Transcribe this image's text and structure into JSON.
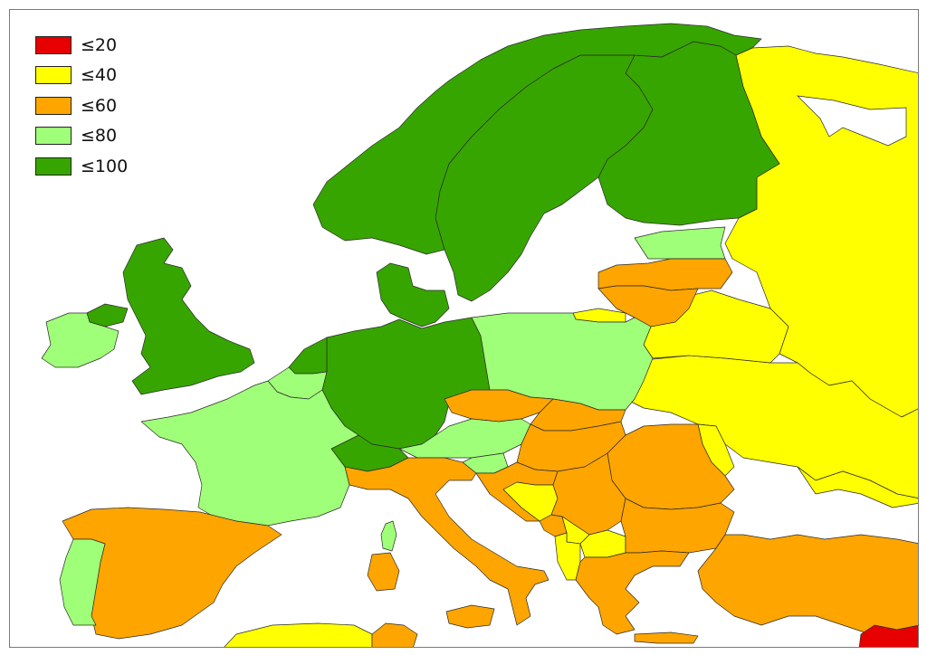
{
  "colors": {
    "le20": "#e60000",
    "le40": "#ffff00",
    "le60": "#ffa500",
    "le80": "#a0ff78",
    "le100": "#37a500",
    "nodata": "#ffffff"
  },
  "legend": {
    "items": [
      {
        "label": "≤20",
        "color": "#e60000"
      },
      {
        "label": "≤40",
        "color": "#ffff00"
      },
      {
        "label": "≤60",
        "color": "#ffa500"
      },
      {
        "label": "≤80",
        "color": "#a0ff78"
      },
      {
        "label": "≤100",
        "color": "#37a500"
      }
    ]
  },
  "regions": {
    "norway": "le100",
    "sweden": "le100",
    "finland": "le100",
    "denmark": "le100",
    "uk": "le100",
    "northern_ireland": "le100",
    "germany": "le100",
    "netherlands": "le100",
    "switzerland": "le100",
    "ireland": "le80",
    "france": "le80",
    "belgium": "le80",
    "poland": "le80",
    "austria": "le80",
    "portugal": "le80",
    "estonia": "le80",
    "slovenia": "le80",
    "corsica": "le80",
    "spain": "le60",
    "italy": "le60",
    "czechia": "le60",
    "latvia": "le60",
    "lithuania": "le60",
    "hungary": "le60",
    "slovakia": "le60",
    "croatia": "le60",
    "serbia": "le60",
    "romania": "le60",
    "bulgaria": "le60",
    "greece": "le60",
    "turkey": "le60",
    "montenegro": "le60",
    "north_africa_right": "le60",
    "russia": "le40",
    "belarus": "le40",
    "ukraine": "le40",
    "moldova": "le40",
    "kaliningrad": "le40",
    "bosnia": "le40",
    "kosovo": "le40",
    "north_macedonia": "le40",
    "albania": "le40",
    "north_africa_left": "le40",
    "syria_corner": "le20"
  }
}
